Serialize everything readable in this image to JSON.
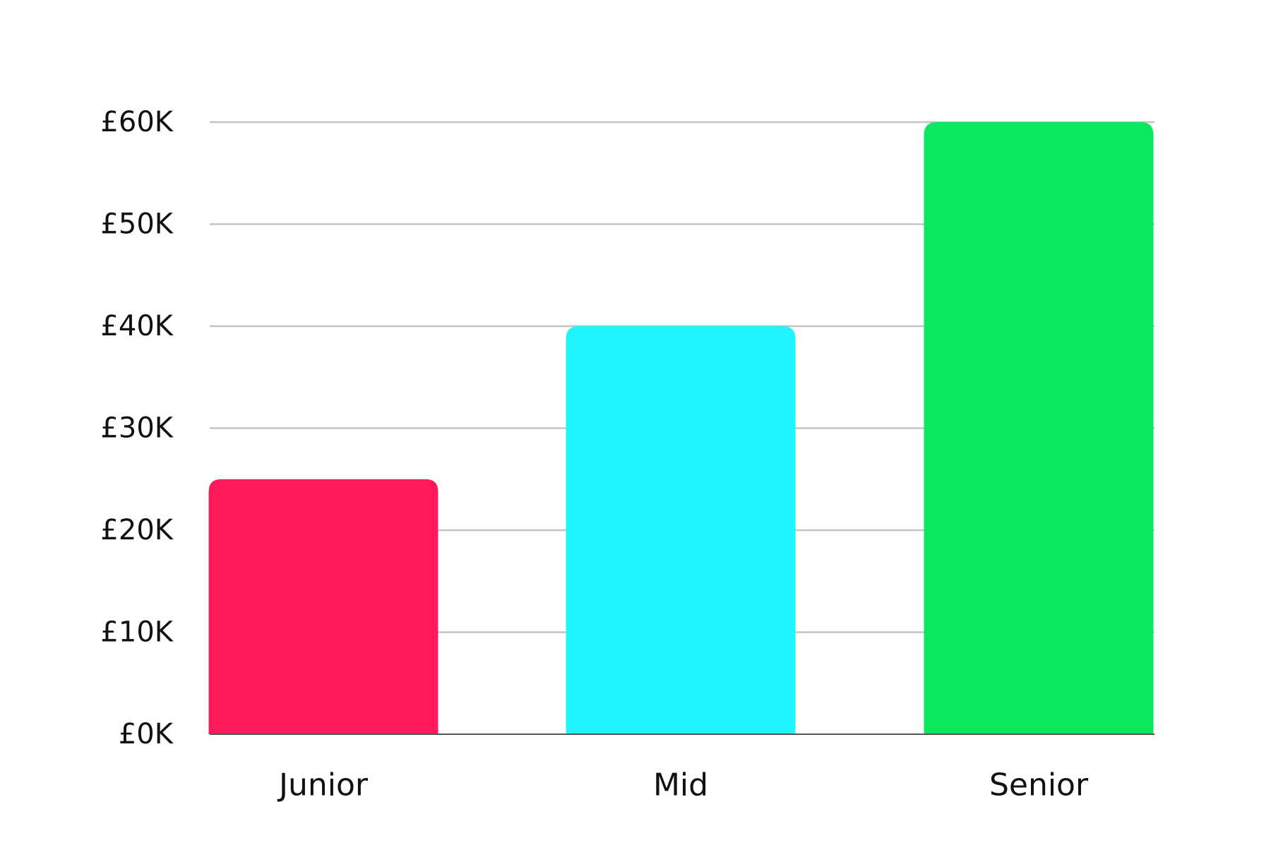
{
  "chart_data": {
    "type": "bar",
    "categories": [
      "Junior",
      "Mid",
      "Senior"
    ],
    "values": [
      25000,
      40000,
      60000
    ],
    "colors": [
      "#ff1a5c",
      "#1ff4ff",
      "#0be860"
    ],
    "ylim": [
      0,
      60000
    ],
    "yticks": [
      0,
      10000,
      20000,
      30000,
      40000,
      50000,
      60000
    ],
    "ytick_labels": [
      "£0K",
      "£10K",
      "£20K",
      "£30K",
      "£40K",
      "£50K",
      "£60K"
    ],
    "grid": true,
    "gridline_color": "#c4c4c4",
    "baseline_color": "#555555",
    "title": "",
    "xlabel": "",
    "ylabel": "",
    "legend": "none"
  }
}
